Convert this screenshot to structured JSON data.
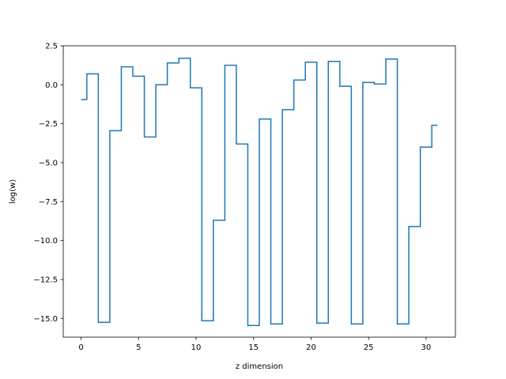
{
  "chart_data": {
    "type": "line",
    "drawstyle": "steps-mid",
    "title": "",
    "xlabel": "z dimension",
    "ylabel": "log(w)",
    "xlim": [
      -1.55,
      32.55
    ],
    "ylim": [
      -16.2,
      2.5
    ],
    "xticks": [
      0,
      5,
      10,
      15,
      20,
      25,
      30
    ],
    "yticks": [
      2.5,
      0.0,
      -2.5,
      -5.0,
      -7.5,
      -10.0,
      -12.5,
      -15.0
    ],
    "ytick_labels": [
      "2.5",
      "0.0",
      "−2.5",
      "−5.0",
      "−7.5",
      "−10.0",
      "−12.5",
      "−15.0"
    ],
    "grid": false,
    "colors": {
      "series": "#1f77b4"
    },
    "series": [
      {
        "x": [
          0,
          1,
          2,
          3,
          4,
          5,
          6,
          7,
          8,
          9,
          10,
          11,
          12,
          13,
          14,
          15,
          16,
          17,
          18,
          19,
          20,
          21,
          22,
          23,
          24,
          25,
          26,
          27,
          28,
          29,
          30,
          31
        ],
        "values": [
          -0.95,
          0.7,
          -15.25,
          -2.95,
          1.15,
          0.55,
          -3.35,
          0.0,
          1.4,
          1.7,
          -0.2,
          -15.15,
          -8.7,
          1.25,
          -3.8,
          -15.45,
          -2.2,
          -15.35,
          -1.6,
          0.3,
          1.45,
          -15.3,
          1.5,
          -0.1,
          -15.35,
          0.15,
          0.05,
          1.65,
          -15.35,
          -9.1,
          -4.0,
          -2.6
        ]
      }
    ]
  }
}
